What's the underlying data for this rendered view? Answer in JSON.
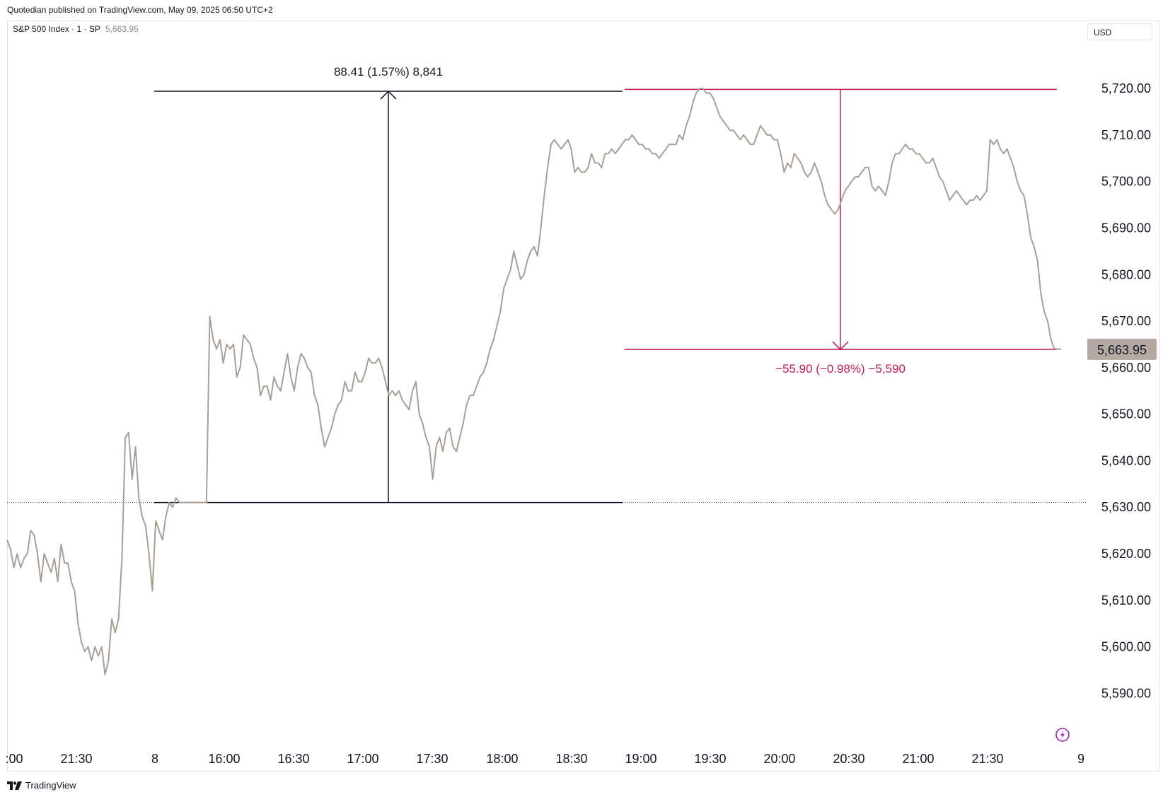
{
  "header": {
    "published_text": "Quotedian published on TradingView.com, May 09, 2025 06:50 UTC+2"
  },
  "legend": {
    "symbol_text": "S&P 500 Index · 1 · SP",
    "last_price": "5,663.95"
  },
  "currency_label": "USD",
  "footer": {
    "brand": "TradingView"
  },
  "colors": {
    "line": "#a89f97",
    "measure_up": "#131722",
    "measure_down": "#c2185b",
    "price_badge": "#b4aaa3"
  },
  "chart_data": {
    "type": "line",
    "title": "",
    "xlabel": "",
    "ylabel": "",
    "ylim": [
      5582,
      5734
    ],
    "y_ticks": [
      5590,
      5600,
      5610,
      5620,
      5630,
      5640,
      5650,
      5660,
      5670,
      5680,
      5690,
      5700,
      5710,
      5720
    ],
    "y_tick_labels": [
      "5,590.00",
      "5,600.00",
      "5,610.00",
      "5,620.00",
      "5,630.00",
      "5,640.00",
      "5,650.00",
      "5,660.00",
      "5,670.00",
      "5,680.00",
      "5,690.00",
      "5,700.00",
      "5,710.00",
      "5,720.00"
    ],
    "x_ticks": [
      ":00",
      "21:30",
      "8",
      "16:00",
      "16:30",
      "17:00",
      "17:30",
      "18:00",
      "18:30",
      "19:00",
      "19:30",
      "20:00",
      "20:30",
      "21:00",
      "21:30",
      "9"
    ],
    "previous_close": 5631,
    "last_price": 5663.95,
    "last_price_label": "5,663.95",
    "grid": false,
    "series": [
      {
        "values": [
          5623,
          5621,
          5617,
          5620,
          5617,
          5619,
          5620,
          5625,
          5624,
          5620,
          5614,
          5620,
          5618,
          5616,
          5619,
          5614,
          5622,
          5618,
          5618,
          5614,
          5612,
          5605,
          5601,
          5599,
          5600,
          5597,
          5600,
          5598,
          5600,
          5594,
          5597,
          5606,
          5603,
          5606,
          5619,
          5645,
          5646,
          5636,
          5643,
          5632,
          5628,
          5626,
          5620,
          5612,
          5627,
          5625,
          5623,
          5628,
          5631,
          5630,
          5632,
          5631,
          5631,
          5631,
          5631,
          5631,
          5631,
          5631,
          5631,
          5631,
          5671,
          5666,
          5664,
          5666,
          5661,
          5665,
          5664,
          5665,
          5658,
          5660,
          5667,
          5666,
          5665,
          5662,
          5660,
          5654,
          5656,
          5656,
          5653,
          5658,
          5656,
          5655,
          5659,
          5663,
          5658,
          5655,
          5660,
          5663,
          5662,
          5660,
          5659,
          5654,
          5652,
          5647,
          5643,
          5645,
          5647,
          5650,
          5652,
          5653,
          5657,
          5655,
          5655,
          5659,
          5657,
          5657,
          5659,
          5662,
          5661,
          5661,
          5662,
          5660,
          5657,
          5654,
          5655,
          5654,
          5655,
          5653,
          5652,
          5651,
          5655,
          5657,
          5650,
          5648,
          5645,
          5643,
          5636,
          5643,
          5645,
          5642,
          5646,
          5647,
          5643,
          5642,
          5645,
          5648,
          5652,
          5654,
          5654,
          5656,
          5658,
          5659,
          5661,
          5664,
          5666,
          5669,
          5672,
          5677,
          5679,
          5681,
          5685,
          5682,
          5679,
          5680,
          5683,
          5685,
          5686,
          5684,
          5690,
          5697,
          5703,
          5708,
          5709,
          5708,
          5707,
          5708,
          5709,
          5707,
          5702,
          5703,
          5702,
          5702,
          5703,
          5706,
          5704,
          5704,
          5703,
          5706,
          5706,
          5707,
          5706,
          5707,
          5708,
          5709,
          5709,
          5710,
          5709,
          5708,
          5708,
          5707,
          5707,
          5706,
          5706,
          5705,
          5706,
          5707,
          5708,
          5708,
          5708,
          5710,
          5709,
          5712,
          5714,
          5717,
          5719,
          5720,
          5720,
          5719,
          5719,
          5718,
          5716,
          5714,
          5713,
          5712,
          5711,
          5711,
          5710,
          5709,
          5710,
          5709,
          5708,
          5708,
          5710,
          5712,
          5711,
          5710,
          5710,
          5709,
          5709,
          5706,
          5702,
          5704,
          5703,
          5706,
          5705,
          5704,
          5702,
          5701,
          5702,
          5704,
          5702,
          5700,
          5697,
          5695,
          5694,
          5693,
          5694,
          5696,
          5698,
          5699,
          5700,
          5701,
          5701,
          5702,
          5703,
          5703,
          5699,
          5698,
          5699,
          5698,
          5697,
          5700,
          5704,
          5706,
          5706,
          5707,
          5708,
          5707,
          5707,
          5706,
          5706,
          5705,
          5704,
          5704,
          5705,
          5703,
          5701,
          5700,
          5698,
          5696,
          5697,
          5698,
          5697,
          5696,
          5695,
          5696,
          5696,
          5697,
          5696,
          5697,
          5698,
          5709,
          5708,
          5709,
          5707,
          5706,
          5707,
          5705,
          5703,
          5700,
          5698,
          5697,
          5693,
          5688,
          5686,
          5683,
          5676,
          5672,
          5670,
          5666,
          5664,
          5664,
          5664
        ]
      }
    ],
    "measurements": [
      {
        "direction": "up",
        "from_price": 5631,
        "to_price": 5719.4,
        "label": "88.41 (1.57%) 8,841"
      },
      {
        "direction": "down",
        "from_price": 5719.8,
        "to_price": 5663.9,
        "label": "−55.90 (−0.98%) −5,590"
      }
    ]
  }
}
